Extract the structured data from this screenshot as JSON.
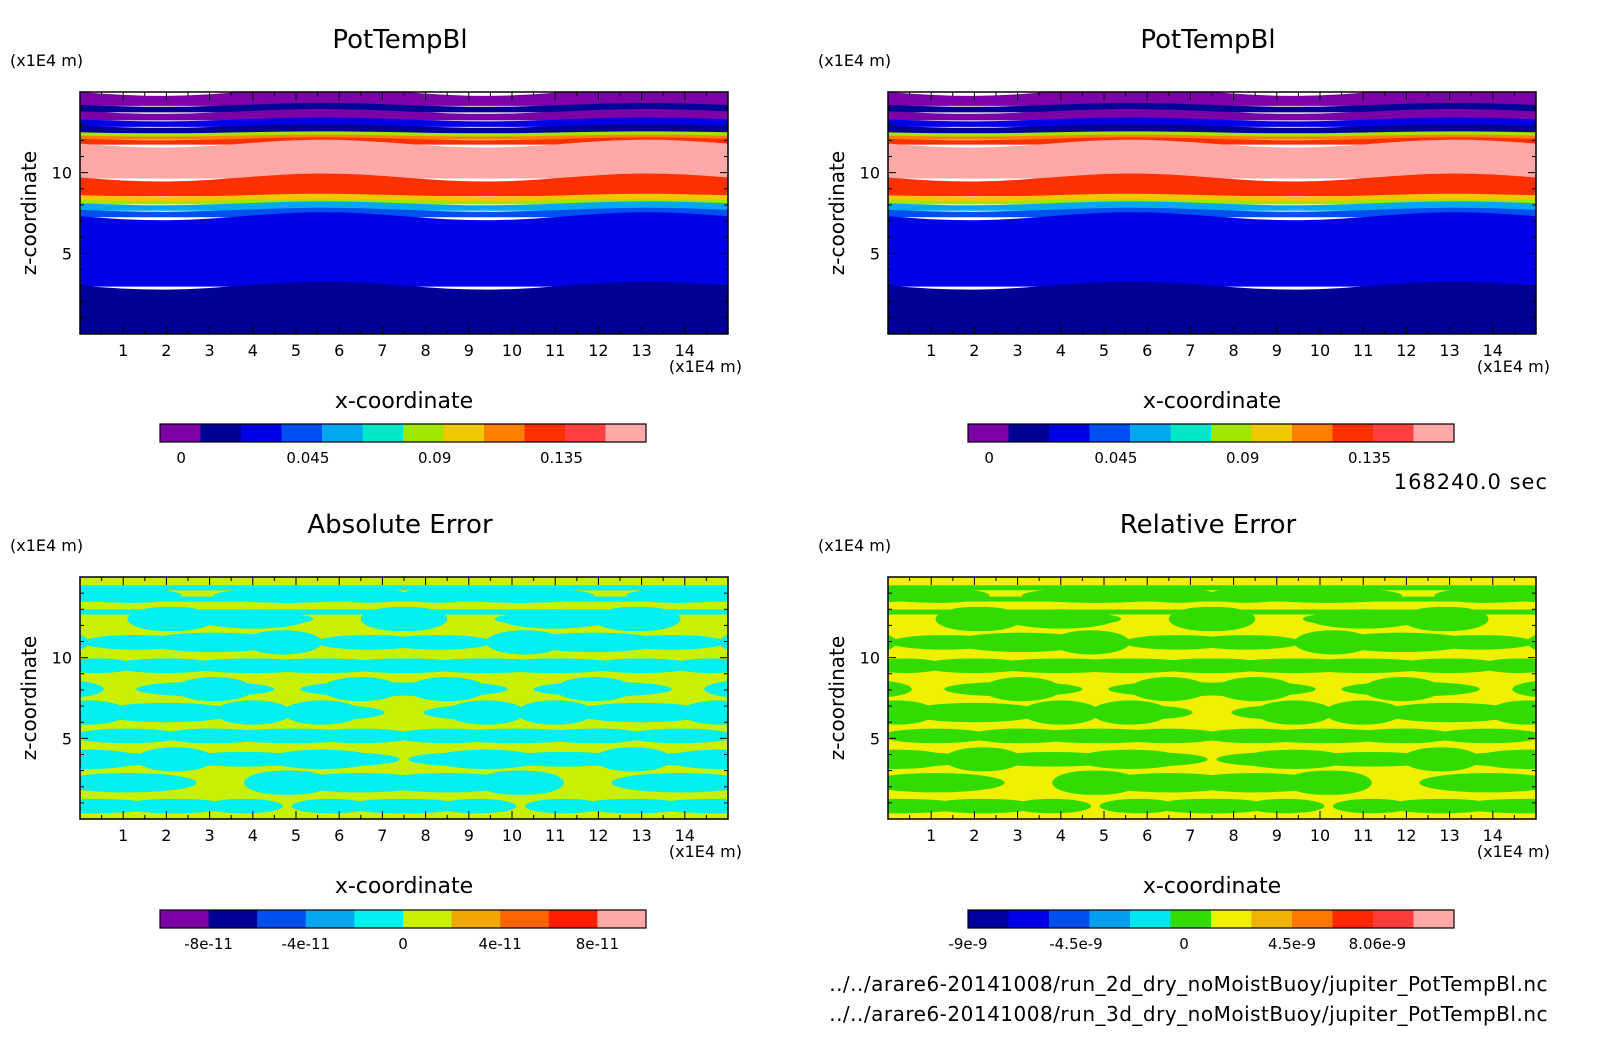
{
  "timestamp": "168240.0 sec",
  "footer": {
    "path1": "../../arare6-20141008/run_2d_dry_noMoistBuoy/jupiter_PotTempBl.nc",
    "path2": "../../arare6-20141008/run_3d_dry_noMoistBuoy/jupiter_PotTempBl.nc"
  },
  "chart_data": [
    {
      "type": "heatmap",
      "title": "PotTempBl",
      "xlabel": "x-coordinate",
      "ylabel": "z-coordinate",
      "x_unit": "(x1E4 m)",
      "y_unit": "(x1E4 m)",
      "xlim": [
        0,
        15
      ],
      "ylim": [
        0,
        15
      ],
      "x_ticks": [
        1,
        2,
        3,
        4,
        5,
        6,
        7,
        8,
        9,
        10,
        11,
        12,
        13,
        14
      ],
      "y_ticks": [
        5,
        10
      ],
      "colorbar": {
        "colors": [
          "#7b00a8",
          "#000096",
          "#0000e6",
          "#0050f0",
          "#00a8f0",
          "#00e6c8",
          "#a0e600",
          "#f0c800",
          "#ff8000",
          "#ff3000",
          "#ff4040",
          "#ffa8a8"
        ],
        "tick_labels": [
          "0",
          "0.045",
          "0.09",
          "0.135"
        ],
        "tick_values": [
          0,
          0.045,
          0.09,
          0.135
        ],
        "vmin": -0.0075,
        "vmax": 0.165
      },
      "bands": [
        {
          "z0": 14.2,
          "z1": 15,
          "color": "#7b00a8"
        },
        {
          "z0": 13.8,
          "z1": 14.2,
          "color": "#000096"
        },
        {
          "z0": 13.3,
          "z1": 13.8,
          "color": "#7b00a8"
        },
        {
          "z0": 12.9,
          "z1": 13.3,
          "color": "#0000e6"
        },
        {
          "z0": 12.5,
          "z1": 12.9,
          "color": "#000096"
        },
        {
          "z0": 12.3,
          "z1": 12.5,
          "color": "#a0e600"
        },
        {
          "z0": 12.1,
          "z1": 12.3,
          "color": "#ff8000"
        },
        {
          "z0": 11.8,
          "z1": 12.1,
          "color": "#ff3000"
        },
        {
          "z0": 9.7,
          "z1": 11.8,
          "color": "#ffa8a8"
        },
        {
          "z0": 8.6,
          "z1": 9.7,
          "color": "#ff3000"
        },
        {
          "z0": 8.3,
          "z1": 8.6,
          "color": "#f0c800"
        },
        {
          "z0": 8.1,
          "z1": 8.3,
          "color": "#a0e600"
        },
        {
          "z0": 7.7,
          "z1": 8.1,
          "color": "#00a8f0"
        },
        {
          "z0": 7.3,
          "z1": 7.7,
          "color": "#0050f0"
        },
        {
          "z0": 3.0,
          "z1": 7.3,
          "color": "#0000e6"
        },
        {
          "z0": 0,
          "z1": 3.0,
          "color": "#000096"
        }
      ]
    },
    {
      "type": "heatmap",
      "title": "PotTempBl",
      "xlabel": "x-coordinate",
      "ylabel": "z-coordinate",
      "x_unit": "(x1E4 m)",
      "y_unit": "(x1E4 m)",
      "xlim": [
        0,
        15
      ],
      "ylim": [
        0,
        15
      ],
      "x_ticks": [
        1,
        2,
        3,
        4,
        5,
        6,
        7,
        8,
        9,
        10,
        11,
        12,
        13,
        14
      ],
      "y_ticks": [
        5,
        10
      ],
      "colorbar": {
        "colors": [
          "#7b00a8",
          "#000096",
          "#0000e6",
          "#0050f0",
          "#00a8f0",
          "#00e6c8",
          "#a0e600",
          "#f0c800",
          "#ff8000",
          "#ff3000",
          "#ff4040",
          "#ffa8a8"
        ],
        "tick_labels": [
          "0",
          "0.045",
          "0.09",
          "0.135"
        ],
        "tick_values": [
          0,
          0.045,
          0.09,
          0.135
        ],
        "vmin": -0.0075,
        "vmax": 0.165
      },
      "bands": [
        {
          "z0": 14.2,
          "z1": 15,
          "color": "#7b00a8"
        },
        {
          "z0": 13.8,
          "z1": 14.2,
          "color": "#000096"
        },
        {
          "z0": 13.3,
          "z1": 13.8,
          "color": "#7b00a8"
        },
        {
          "z0": 12.9,
          "z1": 13.3,
          "color": "#0000e6"
        },
        {
          "z0": 12.5,
          "z1": 12.9,
          "color": "#000096"
        },
        {
          "z0": 12.3,
          "z1": 12.5,
          "color": "#a0e600"
        },
        {
          "z0": 12.1,
          "z1": 12.3,
          "color": "#ff8000"
        },
        {
          "z0": 11.8,
          "z1": 12.1,
          "color": "#ff3000"
        },
        {
          "z0": 9.7,
          "z1": 11.8,
          "color": "#ffa8a8"
        },
        {
          "z0": 8.6,
          "z1": 9.7,
          "color": "#ff3000"
        },
        {
          "z0": 8.3,
          "z1": 8.6,
          "color": "#f0c800"
        },
        {
          "z0": 8.1,
          "z1": 8.3,
          "color": "#a0e600"
        },
        {
          "z0": 7.7,
          "z1": 8.1,
          "color": "#00a8f0"
        },
        {
          "z0": 7.3,
          "z1": 7.7,
          "color": "#0050f0"
        },
        {
          "z0": 3.0,
          "z1": 7.3,
          "color": "#0000e6"
        },
        {
          "z0": 0,
          "z1": 3.0,
          "color": "#000096"
        }
      ]
    },
    {
      "type": "heatmap",
      "title": "Absolute Error",
      "xlabel": "x-coordinate",
      "ylabel": "z-coordinate",
      "x_unit": "(x1E4 m)",
      "y_unit": "(x1E4 m)",
      "xlim": [
        0,
        15
      ],
      "ylim": [
        0,
        15
      ],
      "x_ticks": [
        1,
        2,
        3,
        4,
        5,
        6,
        7,
        8,
        9,
        10,
        11,
        12,
        13,
        14
      ],
      "y_ticks": [
        5,
        10
      ],
      "colorbar": {
        "colors": [
          "#7b00a8",
          "#000096",
          "#0050f0",
          "#00a8f0",
          "#00f0f0",
          "#c8f000",
          "#f0a800",
          "#ff6400",
          "#ff1e00",
          "#ffa8a8"
        ],
        "tick_labels": [
          "-8e-11",
          "-4e-11",
          "0",
          "4e-11",
          "8e-11"
        ],
        "tick_values": [
          -8e-11,
          -4e-11,
          0,
          4e-11,
          8e-11
        ],
        "vmin": -1e-10,
        "vmax": 1e-10
      },
      "pattern": {
        "base": "#c8f000",
        "alt": "#00f0f0"
      }
    },
    {
      "type": "heatmap",
      "title": "Relative Error",
      "xlabel": "x-coordinate",
      "ylabel": "z-coordinate",
      "x_unit": "(x1E4 m)",
      "y_unit": "(x1E4 m)",
      "xlim": [
        0,
        15
      ],
      "ylim": [
        0,
        15
      ],
      "x_ticks": [
        1,
        2,
        3,
        4,
        5,
        6,
        7,
        8,
        9,
        10,
        11,
        12,
        13,
        14
      ],
      "y_ticks": [
        5,
        10
      ],
      "colorbar": {
        "colors": [
          "#0000a0",
          "#0000e6",
          "#0050f0",
          "#00a0f0",
          "#00e6f0",
          "#32dc00",
          "#f0f000",
          "#f0b400",
          "#ff7800",
          "#ff2800",
          "#ff3c3c",
          "#ffa8a8"
        ],
        "tick_labels": [
          "-9e-9",
          "-4.5e-9",
          "0",
          "4.5e-9",
          "8.06e-9"
        ],
        "tick_values": [
          -9e-09,
          -4.5e-09,
          0,
          4.5e-09,
          8.06e-09
        ],
        "vmin": -9e-09,
        "vmax": 1.125e-08
      },
      "pattern": {
        "base": "#f0f000",
        "alt": "#32dc00"
      }
    }
  ]
}
